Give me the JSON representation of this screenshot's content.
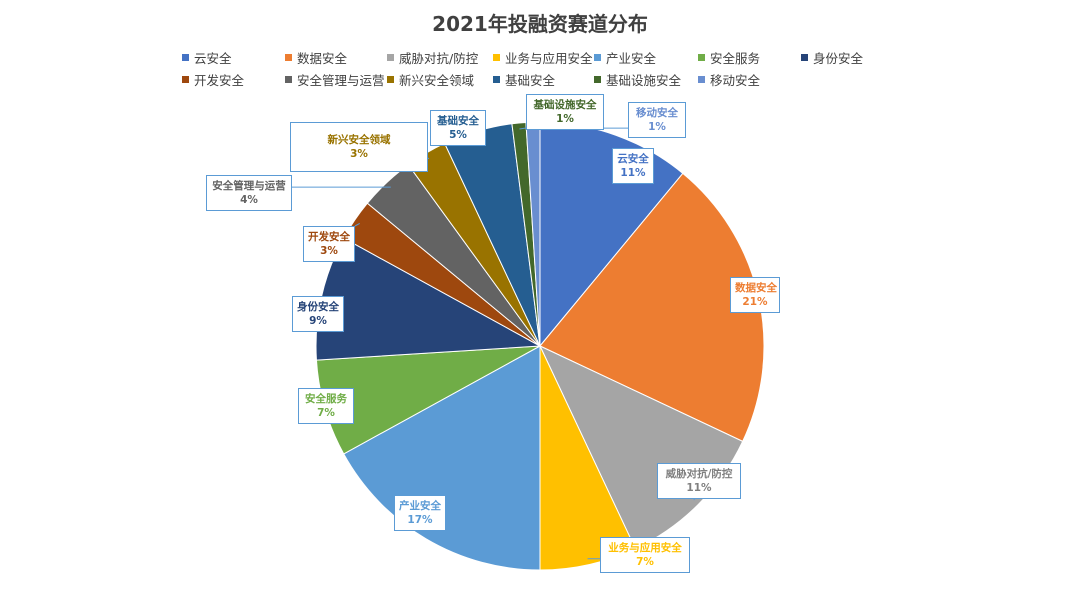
{
  "chart_data": {
    "type": "pie",
    "title": "2021年投融资赛道分布",
    "legend_position": "top",
    "slices": [
      {
        "name": "云安全",
        "value": 11,
        "label": "11%",
        "color": "#4472c4"
      },
      {
        "name": "数据安全",
        "value": 21,
        "label": "21%",
        "color": "#ed7d31"
      },
      {
        "name": "威胁对抗/防控",
        "value": 11,
        "label": "11%",
        "color": "#a5a5a5"
      },
      {
        "name": "业务与应用安全",
        "value": 7,
        "label": "7%",
        "color": "#ffc000"
      },
      {
        "name": "产业安全",
        "value": 17,
        "label": "17%",
        "color": "#5b9bd5"
      },
      {
        "name": "安全服务",
        "value": 7,
        "label": "7%",
        "color": "#70ad47"
      },
      {
        "name": "身份安全",
        "value": 9,
        "label": "9%",
        "color": "#264478"
      },
      {
        "name": "开发安全",
        "value": 3,
        "label": "3%",
        "color": "#9e480e"
      },
      {
        "name": "安全管理与运营",
        "value": 4,
        "label": "4%",
        "color": "#636363"
      },
      {
        "name": "新兴安全领域",
        "value": 3,
        "label": "3%",
        "color": "#997300"
      },
      {
        "name": "基础安全",
        "value": 5,
        "label": "5%",
        "color": "#255e91"
      },
      {
        "name": "基础设施安全",
        "value": 1,
        "label": "1%",
        "color": "#43682b"
      },
      {
        "name": "移动安全",
        "value": 1,
        "label": "1%",
        "color": "#698ed0"
      }
    ]
  }
}
